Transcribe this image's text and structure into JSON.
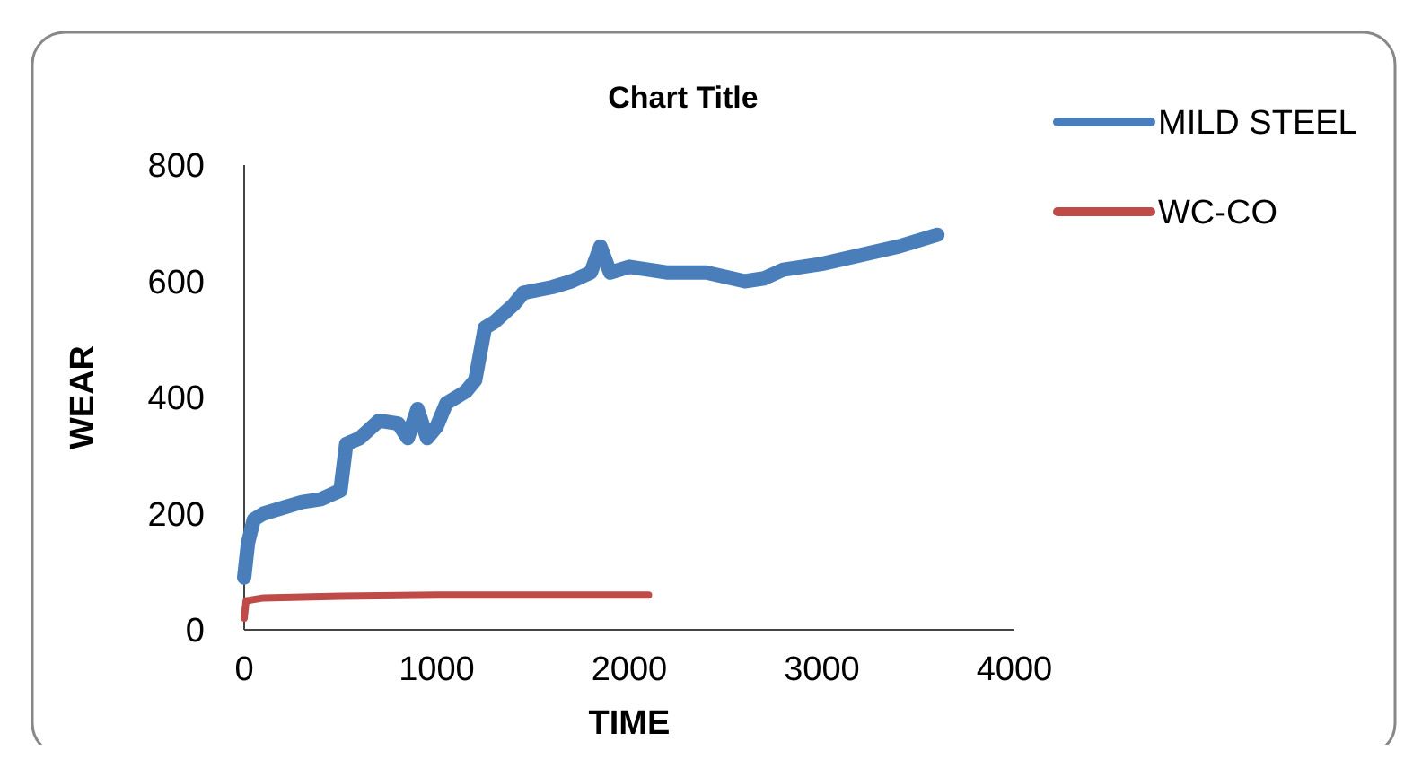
{
  "chart_data": {
    "type": "line",
    "title": "Chart Title",
    "xlabel": "TIME",
    "ylabel": "WEAR",
    "xlim": [
      0,
      4000
    ],
    "xticks": [
      0,
      1000,
      2000,
      3000,
      4000
    ],
    "ylim": [
      0,
      800
    ],
    "yticks": [
      0,
      200,
      400,
      600,
      800
    ],
    "grid": false,
    "legend": "top right",
    "marker": "none",
    "line_style": "solid",
    "series": [
      {
        "name": "MILD STEEL",
        "color": "#4a7ebb",
        "x": [
          0,
          20,
          50,
          100,
          200,
          300,
          400,
          500,
          530,
          600,
          700,
          800,
          850,
          900,
          950,
          1000,
          1050,
          1150,
          1200,
          1250,
          1300,
          1400,
          1450,
          1600,
          1700,
          1800,
          1850,
          1900,
          2000,
          2200,
          2400,
          2600,
          2700,
          2800,
          3000,
          3200,
          3400,
          3500,
          3600
        ],
        "values": [
          90,
          150,
          190,
          200,
          210,
          220,
          225,
          240,
          320,
          330,
          360,
          355,
          330,
          380,
          330,
          350,
          390,
          410,
          430,
          520,
          530,
          560,
          580,
          590,
          600,
          615,
          660,
          615,
          625,
          615,
          615,
          600,
          605,
          620,
          630,
          645,
          660,
          670,
          680
        ]
      },
      {
        "name": "WC-CO",
        "color": "#be4b48",
        "x": [
          0,
          10,
          100,
          500,
          1000,
          1500,
          2100
        ],
        "values": [
          20,
          50,
          55,
          58,
          60,
          60,
          60
        ]
      }
    ]
  }
}
